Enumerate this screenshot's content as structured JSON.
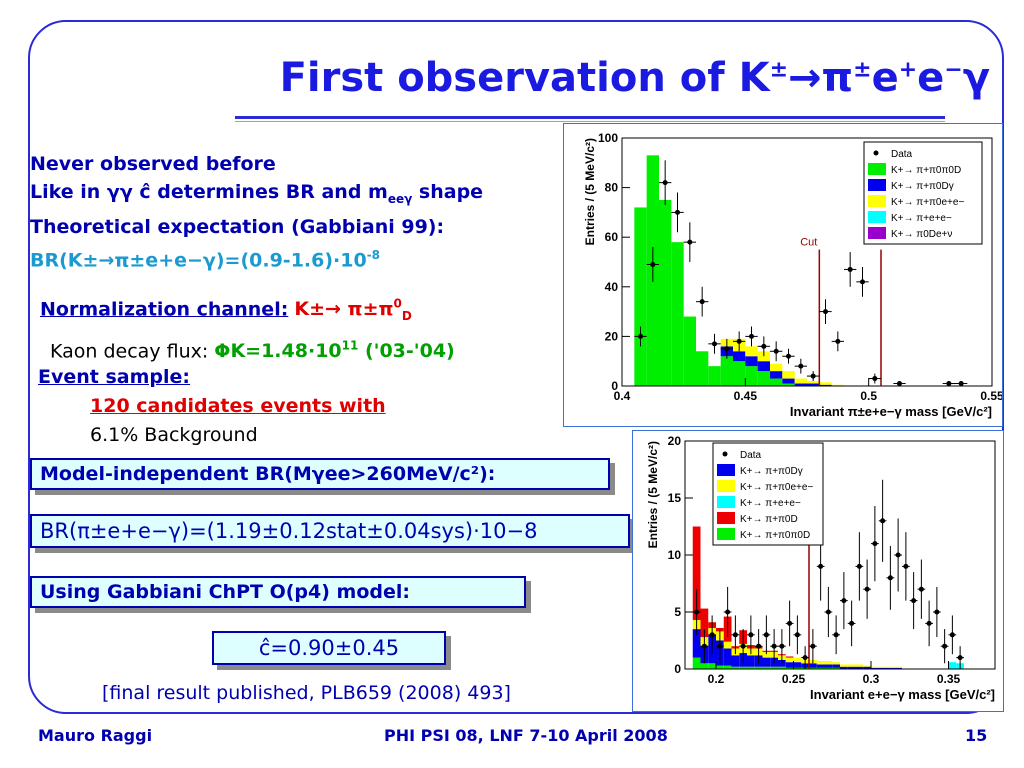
{
  "slide": {
    "title_main": "First observation of K",
    "title_rest": "→π",
    "title_tail": "e",
    "title_end": "e",
    "title_gamma": "γ"
  },
  "intro": {
    "line1": "Never observed before",
    "line2": "Like in γγ ĉ determines BR and m",
    "line2_sub": "eeγ",
    "line2_end": " shape",
    "line3": "Theoretical expectation (Gabbiani 99):",
    "line4": "BR(K±→π±e+e−γ)=(0.9-1.6)·10",
    "line4_exp": "-8"
  },
  "normalization": {
    "label": "Normalization channel:",
    "decay": "K±→ π±π",
    "decay_sup": "0",
    "decay_sub": "D",
    "flux_label": "Kaon decay flux: ",
    "flux_value": "ΦK=1.48·10",
    "flux_exp": "11",
    "flux_period": " ('03-'04)"
  },
  "event_sample": {
    "label": "Event sample:",
    "candidates": "120 candidates events with",
    "background": "6.1% Background"
  },
  "boxes": {
    "model_independent": "Model-independent BR(Mγee>260MeV/c²):",
    "br_result": "BR(π±e+e−γ)=(1.19±0.12stat±0.04sys)·10−8",
    "model_label": "Using Gabbiani ChPT O(p4) model:",
    "c_result": "ĉ=0.90±0.45"
  },
  "final_note": "[final result published, PLB659 (2008) 493]",
  "footer": {
    "author": "Mauro Raggi",
    "conference": "PHI PSI 08, LNF 7-10 April 2008",
    "page": "15"
  },
  "colors": {
    "data": "#000000",
    "green": "#00ee00",
    "blue": "#0000ee",
    "yellow": "#ffff00",
    "cyan": "#00ffff",
    "purple": "#9900cc",
    "red": "#ee0000",
    "cut": "#990000"
  },
  "chart_data": [
    {
      "type": "bar",
      "stacked": true,
      "xlabel": "Invariant π±e+e−γ mass [GeV/c²]",
      "ylabel": "Entries / (5 MeV/c²)",
      "xlim": [
        0.4,
        0.55
      ],
      "ylim": [
        0,
        100
      ],
      "xticks": [
        "0.4",
        "0.45",
        "0.5",
        "0.55"
      ],
      "yticks": [
        "0",
        "20",
        "40",
        "60",
        "80",
        "100"
      ],
      "bin_edges_start": 0.405,
      "bin_width": 0.005,
      "cut_lines": [
        0.48,
        0.505
      ],
      "cut_label": "Cut",
      "legend": [
        {
          "label": "Data",
          "color": "data"
        },
        {
          "label": "K+→ π+π0π0D",
          "color": "green"
        },
        {
          "label": "K+→ π+π0Dγ",
          "color": "blue"
        },
        {
          "label": "K+→ π+π0e+e−",
          "color": "yellow"
        },
        {
          "label": "K+→ π+e+e−",
          "color": "cyan"
        },
        {
          "label": "K+→ π0De+ν",
          "color": "purple"
        }
      ],
      "series": [
        {
          "color": "green",
          "values": [
            72,
            93,
            75,
            58,
            28,
            14,
            8,
            12,
            10,
            8,
            6,
            3,
            1,
            0,
            0,
            0,
            0,
            0,
            0,
            0,
            0,
            0,
            0,
            0,
            0,
            0,
            0,
            0,
            0
          ]
        },
        {
          "color": "blue",
          "values": [
            0,
            0,
            0,
            0,
            0,
            0,
            0,
            4,
            4,
            4,
            4,
            3,
            2,
            1,
            1,
            0.5,
            0,
            0,
            0,
            0,
            0,
            0,
            0,
            0,
            0,
            0,
            0,
            0,
            0
          ]
        },
        {
          "color": "yellow",
          "values": [
            0,
            0,
            0,
            0,
            0,
            0,
            0,
            3,
            5,
            4,
            4,
            3,
            3,
            2,
            1,
            1,
            0.5,
            0,
            0,
            0,
            0,
            0,
            0,
            0,
            0,
            0,
            0,
            0,
            0
          ]
        }
      ],
      "data_points": [
        {
          "x": 0.4075,
          "y": 20,
          "err": 4
        },
        {
          "x": 0.4125,
          "y": 49,
          "err": 7
        },
        {
          "x": 0.4175,
          "y": 82,
          "err": 9
        },
        {
          "x": 0.4225,
          "y": 70,
          "err": 8
        },
        {
          "x": 0.4275,
          "y": 58,
          "err": 8
        },
        {
          "x": 0.4325,
          "y": 34,
          "err": 6
        },
        {
          "x": 0.4375,
          "y": 17,
          "err": 4
        },
        {
          "x": 0.4425,
          "y": 15,
          "err": 4
        },
        {
          "x": 0.4475,
          "y": 18,
          "err": 4
        },
        {
          "x": 0.4525,
          "y": 20,
          "err": 4
        },
        {
          "x": 0.4575,
          "y": 16,
          "err": 4
        },
        {
          "x": 0.4625,
          "y": 14,
          "err": 4
        },
        {
          "x": 0.4675,
          "y": 12,
          "err": 3
        },
        {
          "x": 0.4725,
          "y": 8,
          "err": 3
        },
        {
          "x": 0.4775,
          "y": 4,
          "err": 2
        },
        {
          "x": 0.4825,
          "y": 30,
          "err": 5
        },
        {
          "x": 0.4875,
          "y": 18,
          "err": 4
        },
        {
          "x": 0.4925,
          "y": 47,
          "err": 7
        },
        {
          "x": 0.4975,
          "y": 42,
          "err": 6
        },
        {
          "x": 0.5025,
          "y": 3,
          "err": 2
        },
        {
          "x": 0.5125,
          "y": 1,
          "err": 1
        },
        {
          "x": 0.5325,
          "y": 1,
          "err": 1
        },
        {
          "x": 0.5375,
          "y": 1,
          "err": 1
        }
      ]
    },
    {
      "type": "bar",
      "stacked": true,
      "xlabel": "Invariant e+e−γ mass [GeV/c²]",
      "ylabel": "Entries / (5 MeV/c²)",
      "xlim": [
        0.18,
        0.38
      ],
      "ylim": [
        0,
        20
      ],
      "xticks": [
        "0.2",
        "0.25",
        "0.3",
        "0.35"
      ],
      "yticks": [
        "0",
        "5",
        "10",
        "15",
        "20"
      ],
      "bin_edges_start": 0.18,
      "bin_width": 0.005,
      "cut_lines": [
        0.26
      ],
      "cut_label": "Cut",
      "legend": [
        {
          "label": "Data",
          "color": "data"
        },
        {
          "label": "K+→ π+π0Dγ",
          "color": "blue"
        },
        {
          "label": "K+→ π+π0e+e−",
          "color": "yellow"
        },
        {
          "label": "K+→ π+e+e−",
          "color": "cyan"
        },
        {
          "label": "K+→ π+π0D",
          "color": "red"
        },
        {
          "label": "K+→ π+π0π0D",
          "color": "green"
        }
      ],
      "series": [
        {
          "color": "green",
          "values": [
            0,
            1,
            0.5,
            0.5,
            0.3,
            0.3,
            0.2,
            0.2,
            0.2,
            0.2,
            0.2,
            0.2,
            0.2,
            0.1,
            0.1,
            0.1,
            0.1,
            0.1,
            0.1,
            0.1,
            0,
            0,
            0,
            0,
            0,
            0,
            0,
            0,
            0,
            0,
            0,
            0,
            0,
            0,
            0,
            0,
            0,
            0,
            0,
            0
          ]
        },
        {
          "color": "blue",
          "values": [
            0,
            2.5,
            1.5,
            2.5,
            2.2,
            1.5,
            1,
            1.2,
            1,
            1,
            0.8,
            0.8,
            0.6,
            0.5,
            0.5,
            0.4,
            0.4,
            0.3,
            0.3,
            0.3,
            0.2,
            0.2,
            0.2,
            0.2,
            0.1,
            0.1,
            0.1,
            0.1,
            0,
            0,
            0,
            0,
            0,
            0,
            0,
            0,
            0,
            0,
            0,
            0
          ]
        },
        {
          "color": "yellow",
          "values": [
            0,
            0.8,
            0.8,
            0.6,
            0.8,
            0.6,
            0.6,
            0.8,
            0.6,
            0.6,
            0.5,
            0.5,
            0.4,
            0.4,
            0.4,
            0.3,
            0.3,
            0.3,
            0.3,
            0.2,
            0.2,
            0.2,
            0.2,
            0.1,
            0.1,
            0.1,
            0.1,
            0.1,
            0,
            0,
            0,
            0,
            0,
            0,
            0,
            0,
            0,
            0,
            0,
            0
          ]
        },
        {
          "color": "cyan",
          "values": [
            0,
            0,
            0,
            0,
            0,
            0,
            0,
            0,
            0,
            0,
            0,
            0,
            0,
            0,
            0,
            0,
            0,
            0,
            0,
            0,
            0,
            0,
            0,
            0,
            0,
            0,
            0,
            0,
            0,
            0,
            0,
            0,
            0,
            0,
            0.6,
            0.5,
            0,
            0,
            0,
            0
          ]
        },
        {
          "color": "red",
          "values": [
            0,
            8.2,
            2.5,
            0.5,
            0.3,
            2.2,
            0.2,
            1.2,
            0.3,
            0.2,
            0.1,
            0.1,
            0.1,
            0.1,
            0,
            0,
            0,
            0,
            0,
            0,
            0,
            0,
            0,
            0,
            0,
            0,
            0,
            0,
            0,
            0,
            0,
            0,
            0,
            0,
            0,
            0,
            0,
            0,
            0,
            0
          ]
        }
      ],
      "data_points": [
        {
          "x": 0.1875,
          "y": 5,
          "err": 2
        },
        {
          "x": 0.1925,
          "y": 2,
          "err": 1.5
        },
        {
          "x": 0.1975,
          "y": 3,
          "err": 1.7
        },
        {
          "x": 0.2025,
          "y": 2,
          "err": 1.5
        },
        {
          "x": 0.2075,
          "y": 5,
          "err": 2.2
        },
        {
          "x": 0.2125,
          "y": 3,
          "err": 1.7
        },
        {
          "x": 0.2175,
          "y": 2,
          "err": 1.5
        },
        {
          "x": 0.2225,
          "y": 3,
          "err": 1.7
        },
        {
          "x": 0.2275,
          "y": 2,
          "err": 1.5
        },
        {
          "x": 0.2325,
          "y": 3,
          "err": 1.7
        },
        {
          "x": 0.2375,
          "y": 2,
          "err": 1.5
        },
        {
          "x": 0.2425,
          "y": 2,
          "err": 1.5
        },
        {
          "x": 0.2475,
          "y": 4,
          "err": 2
        },
        {
          "x": 0.2525,
          "y": 3,
          "err": 1.7
        },
        {
          "x": 0.2575,
          "y": 1,
          "err": 1
        },
        {
          "x": 0.2625,
          "y": 2,
          "err": 1.5
        },
        {
          "x": 0.2675,
          "y": 9,
          "err": 3
        },
        {
          "x": 0.2725,
          "y": 5,
          "err": 2.2
        },
        {
          "x": 0.2775,
          "y": 3,
          "err": 1.7
        },
        {
          "x": 0.2825,
          "y": 6,
          "err": 2.5
        },
        {
          "x": 0.2875,
          "y": 4,
          "err": 2
        },
        {
          "x": 0.2925,
          "y": 9,
          "err": 3
        },
        {
          "x": 0.2975,
          "y": 7,
          "err": 2.6
        },
        {
          "x": 0.3025,
          "y": 11,
          "err": 3.3
        },
        {
          "x": 0.3075,
          "y": 13,
          "err": 3.6
        },
        {
          "x": 0.3125,
          "y": 8,
          "err": 2.8
        },
        {
          "x": 0.3175,
          "y": 10,
          "err": 3.2
        },
        {
          "x": 0.3225,
          "y": 9,
          "err": 3
        },
        {
          "x": 0.3275,
          "y": 6,
          "err": 2.5
        },
        {
          "x": 0.3325,
          "y": 7,
          "err": 2.6
        },
        {
          "x": 0.3375,
          "y": 4,
          "err": 2
        },
        {
          "x": 0.3425,
          "y": 5,
          "err": 2.2
        },
        {
          "x": 0.3475,
          "y": 2,
          "err": 1.5
        },
        {
          "x": 0.3525,
          "y": 3,
          "err": 1.7
        },
        {
          "x": 0.3575,
          "y": 1,
          "err": 1
        }
      ]
    }
  ]
}
